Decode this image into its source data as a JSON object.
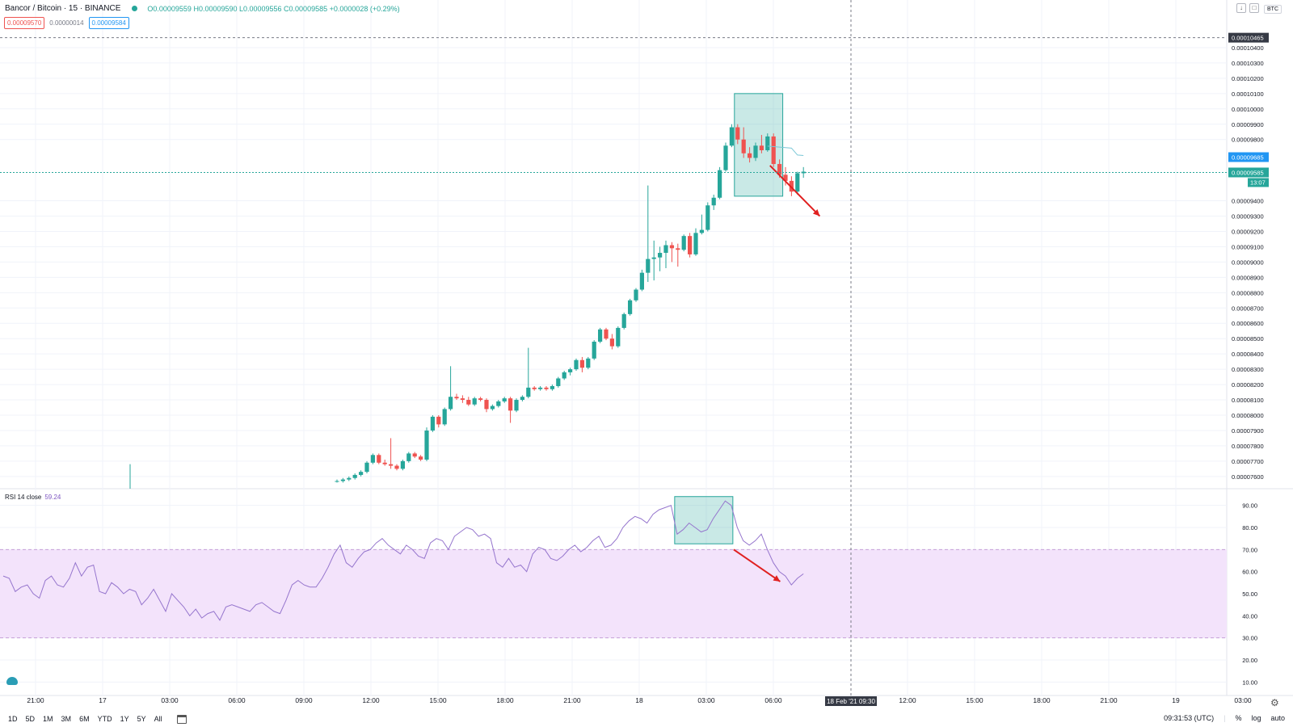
{
  "header": {
    "symbol": "Bancor / Bitcoin · 15 · BINANCE",
    "ohlc": "O0.00009559 H0.00009590 L0.00009556 C0.00009585 +0.0000028 (+0.29%)",
    "sell_price": "0.00009570",
    "spread": "0.00000014",
    "buy_price": "0.00009584"
  },
  "currency_tag": "BTC",
  "rsi": {
    "label": "RSI 14 close",
    "value": "59.24"
  },
  "price_scale": {
    "ticks": [
      "0.00010400",
      "0.00010300",
      "0.00010200",
      "0.00010100",
      "0.00010000",
      "0.00009900",
      "0.00009800",
      "0.00009400",
      "0.00009300",
      "0.00009200",
      "0.00009100",
      "0.00009000",
      "0.00008900",
      "0.00008800",
      "0.00008700",
      "0.00008600",
      "0.00008500",
      "0.00008400",
      "0.00008300",
      "0.00008200",
      "0.00008100",
      "0.00008000",
      "0.00007900",
      "0.00007800",
      "0.00007700",
      "0.00007600"
    ],
    "crosshair_price": "0.00010465",
    "ma_price": "0.00009685",
    "last_price": "0.00009585",
    "countdown": "13:07"
  },
  "rsi_scale": {
    "ticks": [
      "90.00",
      "80.00",
      "70.00",
      "60.00",
      "50.00",
      "40.00",
      "30.00",
      "20.00",
      "10.00"
    ]
  },
  "time_axis": {
    "labels": [
      "21:00",
      "17",
      "03:00",
      "06:00",
      "09:00",
      "12:00",
      "15:00",
      "18:00",
      "21:00",
      "18",
      "03:00",
      "06:00",
      "12:00",
      "15:00",
      "18:00",
      "21:00",
      "19",
      "03:00"
    ],
    "crosshair_label": "18 Feb '21   09:30"
  },
  "bottom_bar": {
    "timeframes": [
      "1D",
      "5D",
      "1M",
      "3M",
      "6M",
      "YTD",
      "1Y",
      "5Y",
      "All"
    ],
    "clock": "09:31:53 (UTC)",
    "percent": "%",
    "log": "log",
    "auto": "auto"
  },
  "colors": {
    "up": "#26a69a",
    "down": "#ef5350",
    "rsi_line": "#9575cd",
    "rsi_band": "#f3e3fb",
    "highlight": "#26a69a",
    "arrow": "#e02020"
  },
  "chart_data": {
    "type": "candlestick",
    "symbol": "BNTBTC",
    "interval": "15",
    "candles": [
      {
        "t": "11:15",
        "o": 7.57e-05,
        "h": 7.58e-05,
        "l": 7.56e-05,
        "c": 7.57e-05
      },
      {
        "t": "11:30",
        "o": 7.57e-05,
        "h": 7.59e-05,
        "l": 7.56e-05,
        "c": 7.58e-05
      },
      {
        "t": "11:45",
        "o": 7.58e-05,
        "h": 7.6e-05,
        "l": 7.57e-05,
        "c": 7.59e-05
      },
      {
        "t": "12:00",
        "o": 7.59e-05,
        "h": 7.62e-05,
        "l": 7.58e-05,
        "c": 7.61e-05
      },
      {
        "t": "12:15",
        "o": 7.61e-05,
        "h": 7.64e-05,
        "l": 7.6e-05,
        "c": 7.63e-05
      },
      {
        "t": "12:30",
        "o": 7.63e-05,
        "h": 7.7e-05,
        "l": 7.62e-05,
        "c": 7.69e-05
      },
      {
        "t": "12:45",
        "o": 7.69e-05,
        "h": 7.75e-05,
        "l": 7.68e-05,
        "c": 7.74e-05
      },
      {
        "t": "13:00",
        "o": 7.74e-05,
        "h": 7.75e-05,
        "l": 7.68e-05,
        "c": 7.69e-05
      },
      {
        "t": "13:15",
        "o": 7.69e-05,
        "h": 7.71e-05,
        "l": 7.67e-05,
        "c": 7.68e-05
      },
      {
        "t": "13:30",
        "o": 7.68e-05,
        "h": 7.85e-05,
        "l": 7.65e-05,
        "c": 7.67e-05
      },
      {
        "t": "13:45",
        "o": 7.67e-05,
        "h": 7.68e-05,
        "l": 7.64e-05,
        "c": 7.65e-05
      },
      {
        "t": "14:00",
        "o": 7.65e-05,
        "h": 7.71e-05,
        "l": 7.64e-05,
        "c": 7.7e-05
      },
      {
        "t": "14:15",
        "o": 7.7e-05,
        "h": 7.76e-05,
        "l": 7.69e-05,
        "c": 7.75e-05
      },
      {
        "t": "14:30",
        "o": 7.75e-05,
        "h": 7.76e-05,
        "l": 7.72e-05,
        "c": 7.73e-05
      },
      {
        "t": "14:45",
        "o": 7.73e-05,
        "h": 7.74e-05,
        "l": 7.7e-05,
        "c": 7.71e-05
      },
      {
        "t": "15:00",
        "o": 7.71e-05,
        "h": 7.92e-05,
        "l": 7.7e-05,
        "c": 7.9e-05
      },
      {
        "t": "15:15",
        "o": 7.9e-05,
        "h": 8e-05,
        "l": 7.89e-05,
        "c": 7.99e-05
      },
      {
        "t": "15:30",
        "o": 7.99e-05,
        "h": 8e-05,
        "l": 7.92e-05,
        "c": 7.94e-05
      },
      {
        "t": "15:45",
        "o": 7.94e-05,
        "h": 8.05e-05,
        "l": 7.93e-05,
        "c": 8.04e-05
      },
      {
        "t": "16:00",
        "o": 8.04e-05,
        "h": 8.32e-05,
        "l": 8.03e-05,
        "c": 8.12e-05
      },
      {
        "t": "16:15",
        "o": 8.12e-05,
        "h": 8.14e-05,
        "l": 8.1e-05,
        "c": 8.11e-05
      },
      {
        "t": "16:30",
        "o": 8.11e-05,
        "h": 8.13e-05,
        "l": 8.08e-05,
        "c": 8.1e-05
      },
      {
        "t": "16:45",
        "o": 8.1e-05,
        "h": 8.12e-05,
        "l": 8.06e-05,
        "c": 8.07e-05
      },
      {
        "t": "17:00",
        "o": 8.07e-05,
        "h": 8.12e-05,
        "l": 8.06e-05,
        "c": 8.11e-05
      },
      {
        "t": "17:15",
        "o": 8.11e-05,
        "h": 8.12e-05,
        "l": 8.09e-05,
        "c": 8.1e-05
      },
      {
        "t": "17:30",
        "o": 8.1e-05,
        "h": 8.11e-05,
        "l": 8.02e-05,
        "c": 8.04e-05
      },
      {
        "t": "17:45",
        "o": 8.04e-05,
        "h": 8.07e-05,
        "l": 8.03e-05,
        "c": 8.06e-05
      },
      {
        "t": "18:00",
        "o": 8.06e-05,
        "h": 8.1e-05,
        "l": 8.05e-05,
        "c": 8.09e-05
      },
      {
        "t": "18:15",
        "o": 8.09e-05,
        "h": 8.12e-05,
        "l": 8.08e-05,
        "c": 8.11e-05
      },
      {
        "t": "18:30",
        "o": 8.11e-05,
        "h": 8.12e-05,
        "l": 7.95e-05,
        "c": 8.03e-05
      },
      {
        "t": "18:45",
        "o": 8.03e-05,
        "h": 8.11e-05,
        "l": 8.02e-05,
        "c": 8.1e-05
      },
      {
        "t": "19:00",
        "o": 8.1e-05,
        "h": 8.13e-05,
        "l": 8.09e-05,
        "c": 8.12e-05
      },
      {
        "t": "19:15",
        "o": 8.12e-05,
        "h": 8.44e-05,
        "l": 8.11e-05,
        "c": 8.18e-05
      },
      {
        "t": "19:30",
        "o": 8.18e-05,
        "h": 8.19e-05,
        "l": 8.16e-05,
        "c": 8.17e-05
      },
      {
        "t": "19:45",
        "o": 8.17e-05,
        "h": 8.19e-05,
        "l": 8.16e-05,
        "c": 8.18e-05
      },
      {
        "t": "20:00",
        "o": 8.18e-05,
        "h": 8.19e-05,
        "l": 8.16e-05,
        "c": 8.17e-05
      },
      {
        "t": "20:15",
        "o": 8.17e-05,
        "h": 8.2e-05,
        "l": 8.16e-05,
        "c": 8.19e-05
      },
      {
        "t": "20:30",
        "o": 8.19e-05,
        "h": 8.25e-05,
        "l": 8.18e-05,
        "c": 8.24e-05
      },
      {
        "t": "20:45",
        "o": 8.24e-05,
        "h": 8.29e-05,
        "l": 8.23e-05,
        "c": 8.28e-05
      },
      {
        "t": "21:00",
        "o": 8.28e-05,
        "h": 8.31e-05,
        "l": 8.26e-05,
        "c": 8.3e-05
      },
      {
        "t": "21:15",
        "o": 8.3e-05,
        "h": 8.37e-05,
        "l": 8.29e-05,
        "c": 8.36e-05
      },
      {
        "t": "21:30",
        "o": 8.36e-05,
        "h": 8.38e-05,
        "l": 8.28e-05,
        "c": 8.31e-05
      },
      {
        "t": "21:45",
        "o": 8.31e-05,
        "h": 8.38e-05,
        "l": 8.3e-05,
        "c": 8.37e-05
      },
      {
        "t": "22:00",
        "o": 8.37e-05,
        "h": 8.49e-05,
        "l": 8.36e-05,
        "c": 8.48e-05
      },
      {
        "t": "22:15",
        "o": 8.48e-05,
        "h": 8.57e-05,
        "l": 8.47e-05,
        "c": 8.56e-05
      },
      {
        "t": "22:30",
        "o": 8.56e-05,
        "h": 8.57e-05,
        "l": 8.49e-05,
        "c": 8.5e-05
      },
      {
        "t": "22:45",
        "o": 8.5e-05,
        "h": 8.53e-05,
        "l": 8.43e-05,
        "c": 8.45e-05
      },
      {
        "t": "23:00",
        "o": 8.45e-05,
        "h": 8.58e-05,
        "l": 8.44e-05,
        "c": 8.57e-05
      },
      {
        "t": "23:15",
        "o": 8.57e-05,
        "h": 8.67e-05,
        "l": 8.56e-05,
        "c": 8.66e-05
      },
      {
        "t": "23:30",
        "o": 8.66e-05,
        "h": 8.76e-05,
        "l": 8.65e-05,
        "c": 8.75e-05
      },
      {
        "t": "23:45",
        "o": 8.75e-05,
        "h": 8.83e-05,
        "l": 8.74e-05,
        "c": 8.82e-05
      },
      {
        "t": "00:00",
        "o": 8.82e-05,
        "h": 8.95e-05,
        "l": 8.81e-05,
        "c": 8.93e-05
      },
      {
        "t": "00:15",
        "o": 8.93e-05,
        "h": 9.5e-05,
        "l": 8.87e-05,
        "c": 9.02e-05
      },
      {
        "t": "00:30",
        "o": 9.02e-05,
        "h": 9.14e-05,
        "l": 8.88e-05,
        "c": 9.03e-05
      },
      {
        "t": "00:45",
        "o": 9.03e-05,
        "h": 9.1e-05,
        "l": 8.94e-05,
        "c": 9.06e-05
      },
      {
        "t": "01:00",
        "o": 9.06e-05,
        "h": 9.14e-05,
        "l": 8.96e-05,
        "c": 9.11e-05
      },
      {
        "t": "01:15",
        "o": 9.11e-05,
        "h": 9.13e-05,
        "l": 9e-05,
        "c": 9.09e-05
      },
      {
        "t": "01:30",
        "o": 9.09e-05,
        "h": 9.12e-05,
        "l": 8.97e-05,
        "c": 9.08e-05
      },
      {
        "t": "01:45",
        "o": 9.08e-05,
        "h": 9.18e-05,
        "l": 9.07e-05,
        "c": 9.17e-05
      },
      {
        "t": "02:00",
        "o": 9.17e-05,
        "h": 9.19e-05,
        "l": 9.03e-05,
        "c": 9.05e-05
      },
      {
        "t": "02:15",
        "o": 9.05e-05,
        "h": 9.22e-05,
        "l": 9.04e-05,
        "c": 9.19e-05
      },
      {
        "t": "02:30",
        "o": 9.19e-05,
        "h": 9.31e-05,
        "l": 9.18e-05,
        "c": 9.21e-05
      },
      {
        "t": "02:45",
        "o": 9.21e-05,
        "h": 9.39e-05,
        "l": 9.2e-05,
        "c": 9.37e-05
      },
      {
        "t": "03:00",
        "o": 9.37e-05,
        "h": 9.44e-05,
        "l": 9.34e-05,
        "c": 9.42e-05
      },
      {
        "t": "03:15",
        "o": 9.42e-05,
        "h": 9.62e-05,
        "l": 9.41e-05,
        "c": 9.6e-05
      },
      {
        "t": "03:30",
        "o": 9.6e-05,
        "h": 9.78e-05,
        "l": 9.59e-05,
        "c": 9.76e-05
      },
      {
        "t": "03:45",
        "o": 9.76e-05,
        "h": 9.9e-05,
        "l": 9.75e-05,
        "c": 9.88e-05
      },
      {
        "t": "04:00",
        "o": 9.88e-05,
        "h": 9.9e-05,
        "l": 9.77e-05,
        "c": 9.8e-05
      },
      {
        "t": "04:15",
        "o": 9.8e-05,
        "h": 9.88e-05,
        "l": 9.68e-05,
        "c": 9.71e-05
      },
      {
        "t": "04:30",
        "o": 9.71e-05,
        "h": 9.75e-05,
        "l": 9.65e-05,
        "c": 9.68e-05
      },
      {
        "t": "04:45",
        "o": 9.68e-05,
        "h": 9.78e-05,
        "l": 9.66e-05,
        "c": 9.76e-05
      },
      {
        "t": "05:00",
        "o": 9.76e-05,
        "h": 9.83e-05,
        "l": 9.71e-05,
        "c": 9.73e-05
      },
      {
        "t": "05:15",
        "o": 9.73e-05,
        "h": 9.84e-05,
        "l": 9.72e-05,
        "c": 9.82e-05
      },
      {
        "t": "05:30",
        "o": 9.82e-05,
        "h": 9.84e-05,
        "l": 9.62e-05,
        "c": 9.64e-05
      },
      {
        "t": "05:45",
        "o": 9.64e-05,
        "h": 9.67e-05,
        "l": 9.55e-05,
        "c": 9.57e-05
      },
      {
        "t": "06:00",
        "o": 9.57e-05,
        "h": 9.62e-05,
        "l": 9.5e-05,
        "c": 9.53e-05
      },
      {
        "t": "06:15",
        "o": 9.53e-05,
        "h": 9.56e-05,
        "l": 9.43e-05,
        "c": 9.46e-05
      },
      {
        "t": "06:30",
        "o": 9.46e-05,
        "h": 9.59e-05,
        "l": 9.44e-05,
        "c": 9.58e-05
      },
      {
        "t": "06:45",
        "o": 9.58e-05,
        "h": 9.62e-05,
        "l": 9.55e-05,
        "c": 9.59e-05
      }
    ],
    "ma_line_value": 9.685e-05,
    "rsi_values": [
      58,
      57,
      51,
      53,
      54,
      50,
      48,
      56,
      58,
      54,
      53,
      57,
      64,
      58,
      62,
      63,
      51,
      50,
      55,
      53,
      50,
      52,
      51,
      45,
      48,
      52,
      47,
      42,
      50,
      47,
      44,
      40,
      43,
      39,
      41,
      42,
      38,
      44,
      45,
      44,
      43,
      42,
      45,
      46,
      44,
      42,
      41,
      47,
      54,
      56,
      54,
      53,
      53,
      57,
      62,
      68,
      72,
      64,
      62,
      66,
      69,
      70,
      73,
      75,
      72,
      70,
      68,
      72,
      70,
      67,
      66,
      73,
      75,
      74,
      70,
      76,
      78,
      80,
      79,
      76,
      77,
      75,
      64,
      62,
      66,
      62,
      63,
      60,
      68,
      71,
      70,
      66,
      65,
      67,
      70,
      72,
      69,
      71,
      74,
      76,
      71,
      72,
      75,
      80,
      83,
      85,
      84,
      82,
      86,
      88,
      89,
      90,
      77,
      79,
      82,
      80,
      78,
      79,
      84,
      88,
      92,
      90,
      80,
      74,
      72,
      74,
      77,
      70,
      64,
      60,
      58,
      54,
      57,
      59
    ],
    "rsi_bands": {
      "upper": 70,
      "lower": 30
    },
    "ylim_price": [
      7.52e-05,
      0.000105
    ],
    "ylim_rsi": [
      5,
      95
    ]
  }
}
